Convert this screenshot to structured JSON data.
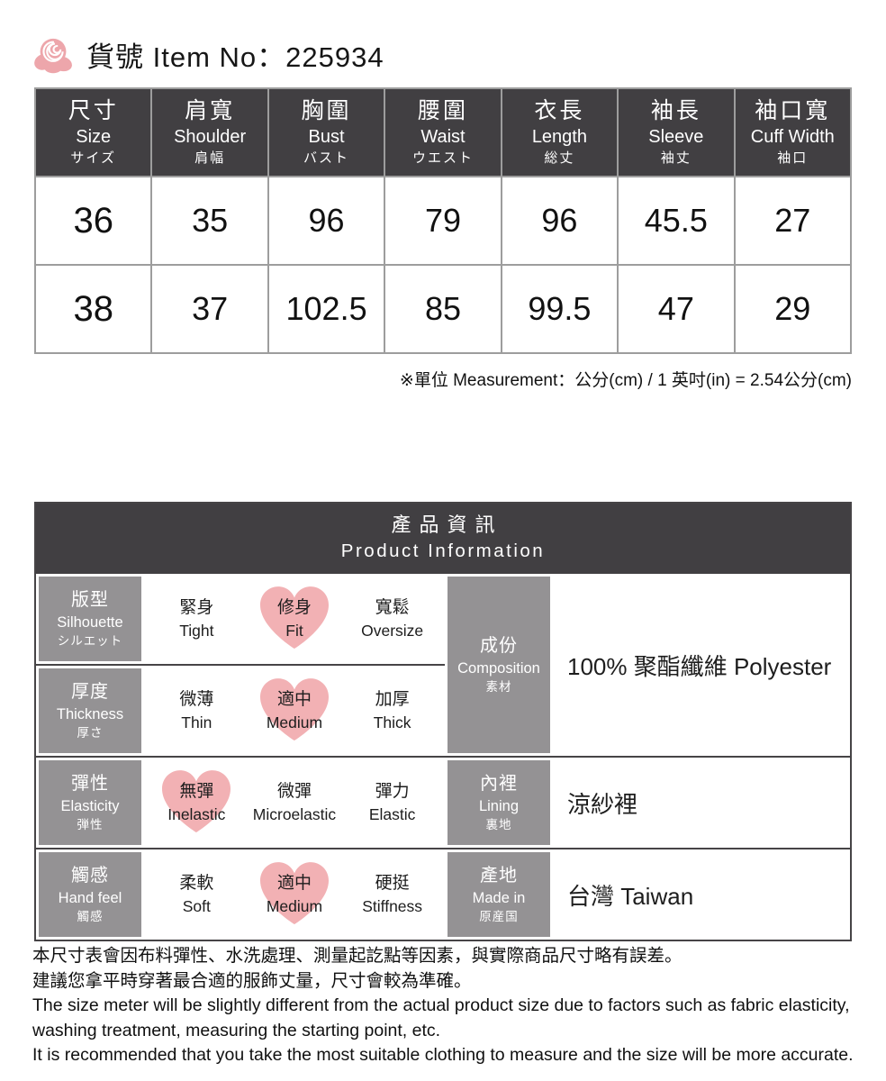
{
  "header": {
    "item_line": "貨號 Item No：225934",
    "rose_color": "#eda6ab"
  },
  "size_table": {
    "columns": [
      {
        "zh": "尺寸",
        "en": "Size",
        "jp": "サイズ"
      },
      {
        "zh": "肩寬",
        "en": "Shoulder",
        "jp": "肩幅"
      },
      {
        "zh": "胸圍",
        "en": "Bust",
        "jp": "バスト"
      },
      {
        "zh": "腰圍",
        "en": "Waist",
        "jp": "ウエスト"
      },
      {
        "zh": "衣長",
        "en": "Length",
        "jp": "総丈"
      },
      {
        "zh": "袖長",
        "en": "Sleeve",
        "jp": "袖丈"
      },
      {
        "zh": "袖口寬",
        "en": "Cuff Width",
        "jp": "袖口"
      }
    ],
    "rows": [
      [
        "36",
        "35",
        "96",
        "79",
        "96",
        "45.5",
        "27"
      ],
      [
        "38",
        "37",
        "102.5",
        "85",
        "99.5",
        "47",
        "29"
      ]
    ],
    "unit_note": "※單位 Measurement：公分(cm) / 1 英吋(in) = 2.54公分(cm)"
  },
  "product_info": {
    "title_zh": "產品資訊",
    "title_en": "Product Information",
    "heart_color": "#f2b1b4",
    "attributes": [
      {
        "label": {
          "zh": "版型",
          "en": "Silhouette",
          "jp": "シルエット"
        },
        "options": [
          {
            "zh": "緊身",
            "en": "Tight",
            "selected": false
          },
          {
            "zh": "修身",
            "en": "Fit",
            "selected": true
          },
          {
            "zh": "寬鬆",
            "en": "Oversize",
            "selected": false
          }
        ]
      },
      {
        "label": {
          "zh": "厚度",
          "en": "Thickness",
          "jp": "厚さ"
        },
        "options": [
          {
            "zh": "微薄",
            "en": "Thin",
            "selected": false
          },
          {
            "zh": "適中",
            "en": "Medium",
            "selected": true
          },
          {
            "zh": "加厚",
            "en": "Thick",
            "selected": false
          }
        ]
      },
      {
        "label": {
          "zh": "彈性",
          "en": "Elasticity",
          "jp": "弾性"
        },
        "options": [
          {
            "zh": "無彈",
            "en": "Inelastic",
            "selected": true
          },
          {
            "zh": "微彈",
            "en": "Microelastic",
            "selected": false
          },
          {
            "zh": "彈力",
            "en": "Elastic",
            "selected": false
          }
        ]
      },
      {
        "label": {
          "zh": "觸感",
          "en": "Hand feel",
          "jp": "觸感"
        },
        "options": [
          {
            "zh": "柔軟",
            "en": "Soft",
            "selected": false
          },
          {
            "zh": "適中",
            "en": "Medium",
            "selected": true
          },
          {
            "zh": "硬挺",
            "en": "Stiffness",
            "selected": false
          }
        ]
      }
    ],
    "details": [
      {
        "label": {
          "zh": "成份",
          "en": "Composition",
          "jp": "素材"
        },
        "value": "100% 聚酯纖維 Polyester",
        "rowspan": 2
      },
      {
        "label": {
          "zh": "內裡",
          "en": "Lining",
          "jp": "裏地"
        },
        "value": "涼紗裡",
        "rowspan": 1
      },
      {
        "label": {
          "zh": "產地",
          "en": "Made in",
          "jp": "原産国"
        },
        "value": "台灣 Taiwan",
        "rowspan": 1
      }
    ]
  },
  "footer_notes": [
    "本尺寸表會因布料彈性、水洗處理、測量起訖點等因素，與實際商品尺寸略有誤差。",
    "建議您拿平時穿著最合適的服飾丈量，尺寸會較為準確。",
    "The size meter will be slightly different from the actual product size due to factors such as fabric elasticity,",
    "washing treatment, measuring the starting point, etc.",
    "It is recommended that you take the most suitable clothing to measure and the size will be more accurate."
  ]
}
